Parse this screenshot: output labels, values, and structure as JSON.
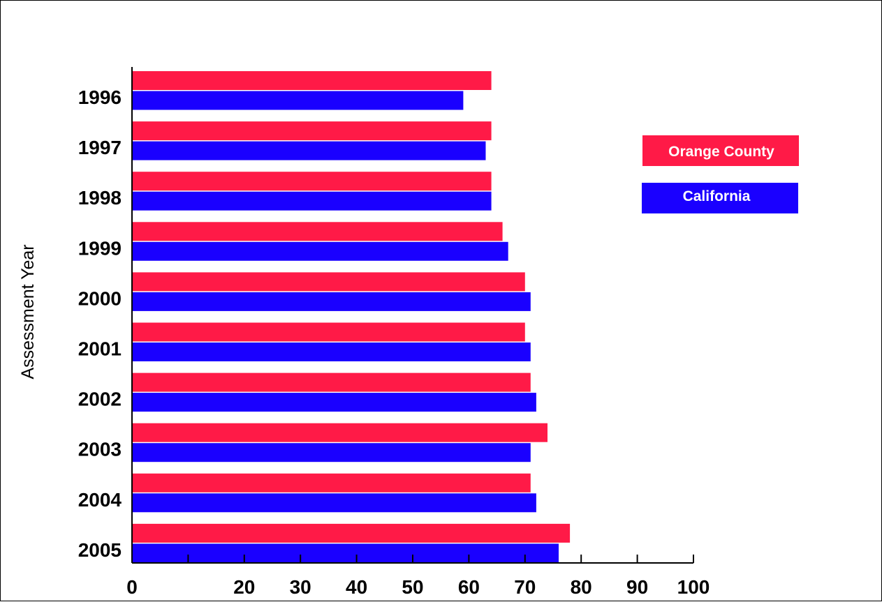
{
  "chart_data": {
    "type": "bar",
    "orientation": "horizontal",
    "title": "",
    "xlabel": "",
    "ylabel": "Assessment Year",
    "categories": [
      "1996",
      "1997",
      "1998",
      "1999",
      "2000",
      "2001",
      "2002",
      "2003",
      "2004",
      "2005"
    ],
    "series": [
      {
        "name": "Orange County",
        "color": "#ff1a47",
        "values": [
          64,
          64,
          64,
          66,
          70,
          70,
          71,
          74,
          71,
          78
        ]
      },
      {
        "name": "California",
        "color": "#1a00ff",
        "values": [
          59,
          63,
          64,
          67,
          71,
          71,
          72,
          71,
          72,
          76
        ]
      }
    ],
    "x_ticks": [
      0,
      10,
      20,
      30,
      40,
      50,
      60,
      70,
      80,
      90,
      100
    ],
    "x_tick_labels": [
      "0",
      "",
      "20",
      "30",
      "40",
      "50",
      "60",
      "70",
      "80",
      "90",
      "100"
    ],
    "xlim": [
      0,
      100
    ],
    "grid": false,
    "legend_position": "right"
  }
}
